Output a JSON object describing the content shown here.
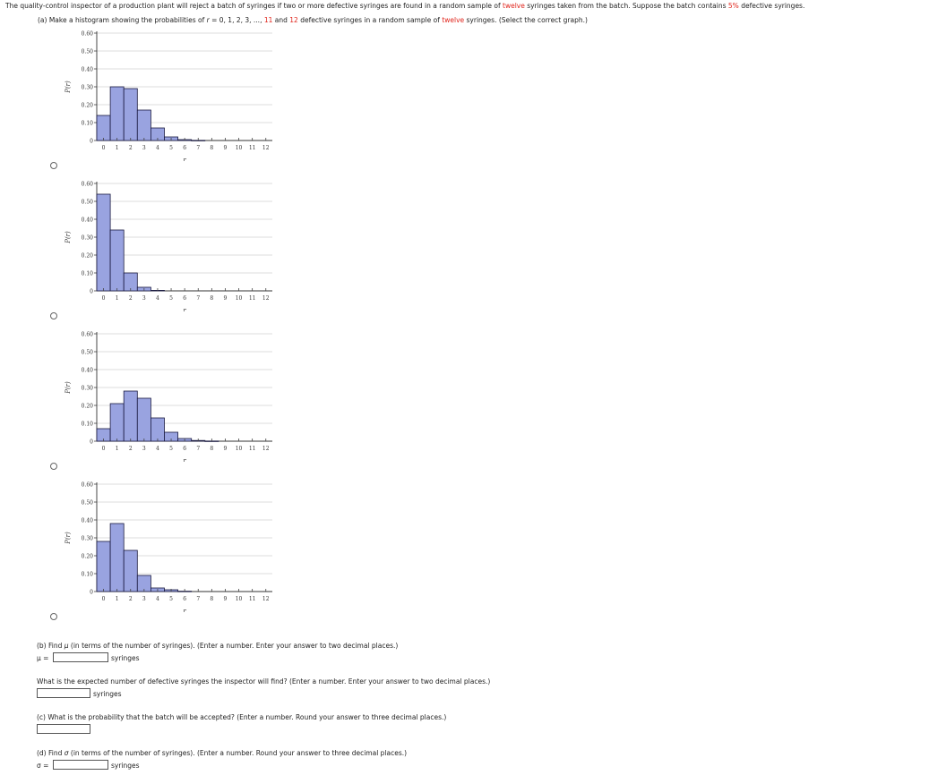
{
  "intro": {
    "p1": "The quality-control inspector of a production plant will reject a batch of syringes if two or more defective syringes are found in a random sample of ",
    "red1": "twelve",
    "p2": " syringes taken from the batch. Suppose the batch contains ",
    "red2": "5%",
    "p3": " defective syringes."
  },
  "part_a": {
    "p1": "(a) Make a histogram showing the probabilities of ",
    "r": "r",
    "p2": " = 0, 1, 2, 3, ..., ",
    "red1": "11",
    "p3": " and ",
    "red2": "12",
    "p4": " defective syringes in a random sample of ",
    "red3": "twelve",
    "p5": " syringes. (Select the correct graph.)"
  },
  "chart_data": [
    {
      "type": "bar",
      "title": "",
      "xlabel": "r",
      "ylabel": "P(r)",
      "ylim": [
        0,
        0.6
      ],
      "yticks": [
        "0",
        "0.10",
        "0.20",
        "0.30",
        "0.40",
        "0.50",
        "0.60"
      ],
      "categories": [
        "0",
        "1",
        "2",
        "3",
        "4",
        "5",
        "6",
        "7",
        "8",
        "9",
        "10",
        "11",
        "12"
      ],
      "values": [
        0.14,
        0.3,
        0.29,
        0.17,
        0.07,
        0.02,
        0.005,
        0.001,
        0,
        0,
        0,
        0,
        0
      ]
    },
    {
      "type": "bar",
      "title": "",
      "xlabel": "r",
      "ylabel": "P(r)",
      "ylim": [
        0,
        0.6
      ],
      "yticks": [
        "0",
        "0.10",
        "0.20",
        "0.30",
        "0.40",
        "0.50",
        "0.60"
      ],
      "categories": [
        "0",
        "1",
        "2",
        "3",
        "4",
        "5",
        "6",
        "7",
        "8",
        "9",
        "10",
        "11",
        "12"
      ],
      "values": [
        0.54,
        0.34,
        0.1,
        0.02,
        0.003,
        0,
        0,
        0,
        0,
        0,
        0,
        0,
        0
      ]
    },
    {
      "type": "bar",
      "title": "",
      "xlabel": "r",
      "ylabel": "P(r)",
      "ylim": [
        0,
        0.6
      ],
      "yticks": [
        "0",
        "0.10",
        "0.20",
        "0.30",
        "0.40",
        "0.50",
        "0.60"
      ],
      "categories": [
        "0",
        "1",
        "2",
        "3",
        "4",
        "5",
        "6",
        "7",
        "8",
        "9",
        "10",
        "11",
        "12"
      ],
      "values": [
        0.07,
        0.21,
        0.28,
        0.24,
        0.13,
        0.05,
        0.015,
        0.004,
        0.001,
        0,
        0,
        0,
        0
      ]
    },
    {
      "type": "bar",
      "title": "",
      "xlabel": "r",
      "ylabel": "P(r)",
      "ylim": [
        0,
        0.6
      ],
      "yticks": [
        "0",
        "0.10",
        "0.20",
        "0.30",
        "0.40",
        "0.50",
        "0.60"
      ],
      "categories": [
        "0",
        "1",
        "2",
        "3",
        "4",
        "5",
        "6",
        "7",
        "8",
        "9",
        "10",
        "11",
        "12"
      ],
      "values": [
        0.28,
        0.38,
        0.23,
        0.09,
        0.02,
        0.01,
        0.002,
        0,
        0,
        0,
        0,
        0,
        0
      ]
    }
  ],
  "part_b": {
    "question_pre": "(b) Find ",
    "mu": "μ",
    "question_post": " (in terms of the number of syringes). (Enter a number. Enter your answer to two decimal places.)",
    "label": "μ =",
    "value": "",
    "unit": "syringes"
  },
  "expected": {
    "question": "What is the expected number of defective syringes the inspector will find? (Enter a number. Enter your answer to two decimal places.)",
    "value": "",
    "unit": "syringes"
  },
  "part_c": {
    "question": "(c) What is the probability that the batch will be accepted? (Enter a number. Round your answer to three decimal places.)",
    "value": ""
  },
  "part_d": {
    "question_pre": "(d) Find ",
    "sigma": "σ",
    "question_post": " (in terms of the number of syringes). (Enter a number. Round your answer to three decimal places.)",
    "label": "σ =",
    "value": "",
    "unit": "syringes"
  },
  "colors": {
    "bar_fill": "#99a3e0",
    "bar_stroke": "#1a1a40",
    "red_text": "#e0241b",
    "grid": "#d0d0d0"
  }
}
